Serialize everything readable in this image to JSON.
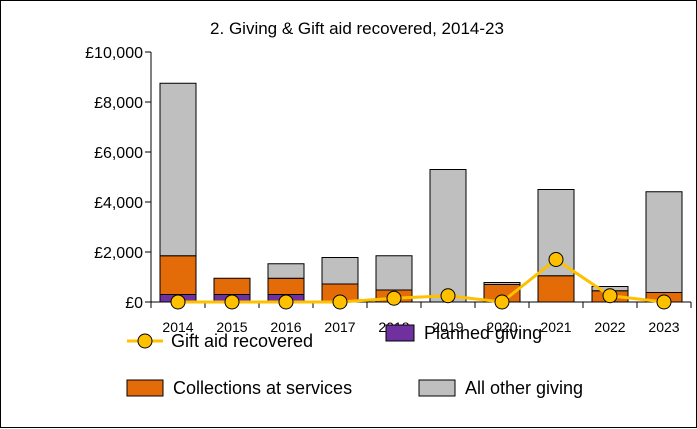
{
  "chart_data": {
    "type": "bar",
    "title": "2. Giving & Gift aid recovered, 2014-23",
    "categories": [
      "2014",
      "2015",
      "2016",
      "2017",
      "2018",
      "2019",
      "2020",
      "2021",
      "2022",
      "2023"
    ],
    "stacked": true,
    "ylim": [
      0,
      10000
    ],
    "yticks": [
      0,
      2000,
      4000,
      6000,
      8000,
      10000
    ],
    "ytick_labels": [
      "£0",
      "£2,000",
      "£4,000",
      "£6,000",
      "£8,000",
      "£10,000"
    ],
    "grid": false,
    "legend_position": "bottom",
    "series": [
      {
        "name": "Planned giving",
        "type": "bar",
        "color": "#7030a0",
        "values": [
          300,
          300,
          300,
          0,
          0,
          0,
          0,
          0,
          0,
          0
        ]
      },
      {
        "name": "Collections at services",
        "type": "bar",
        "color": "#e36c09",
        "values": [
          1550,
          650,
          650,
          720,
          480,
          0,
          700,
          1050,
          450,
          380
        ]
      },
      {
        "name": "All other giving",
        "type": "bar",
        "color": "#bfbfbf",
        "values": [
          6900,
          0,
          580,
          1060,
          1370,
          5300,
          80,
          3450,
          170,
          4030
        ]
      },
      {
        "name": "Gift aid recovered",
        "type": "line",
        "color": "#ffc000",
        "marker_color": "#ffc000",
        "values": [
          0,
          0,
          0,
          0,
          150,
          250,
          0,
          1700,
          250,
          0
        ]
      }
    ]
  }
}
